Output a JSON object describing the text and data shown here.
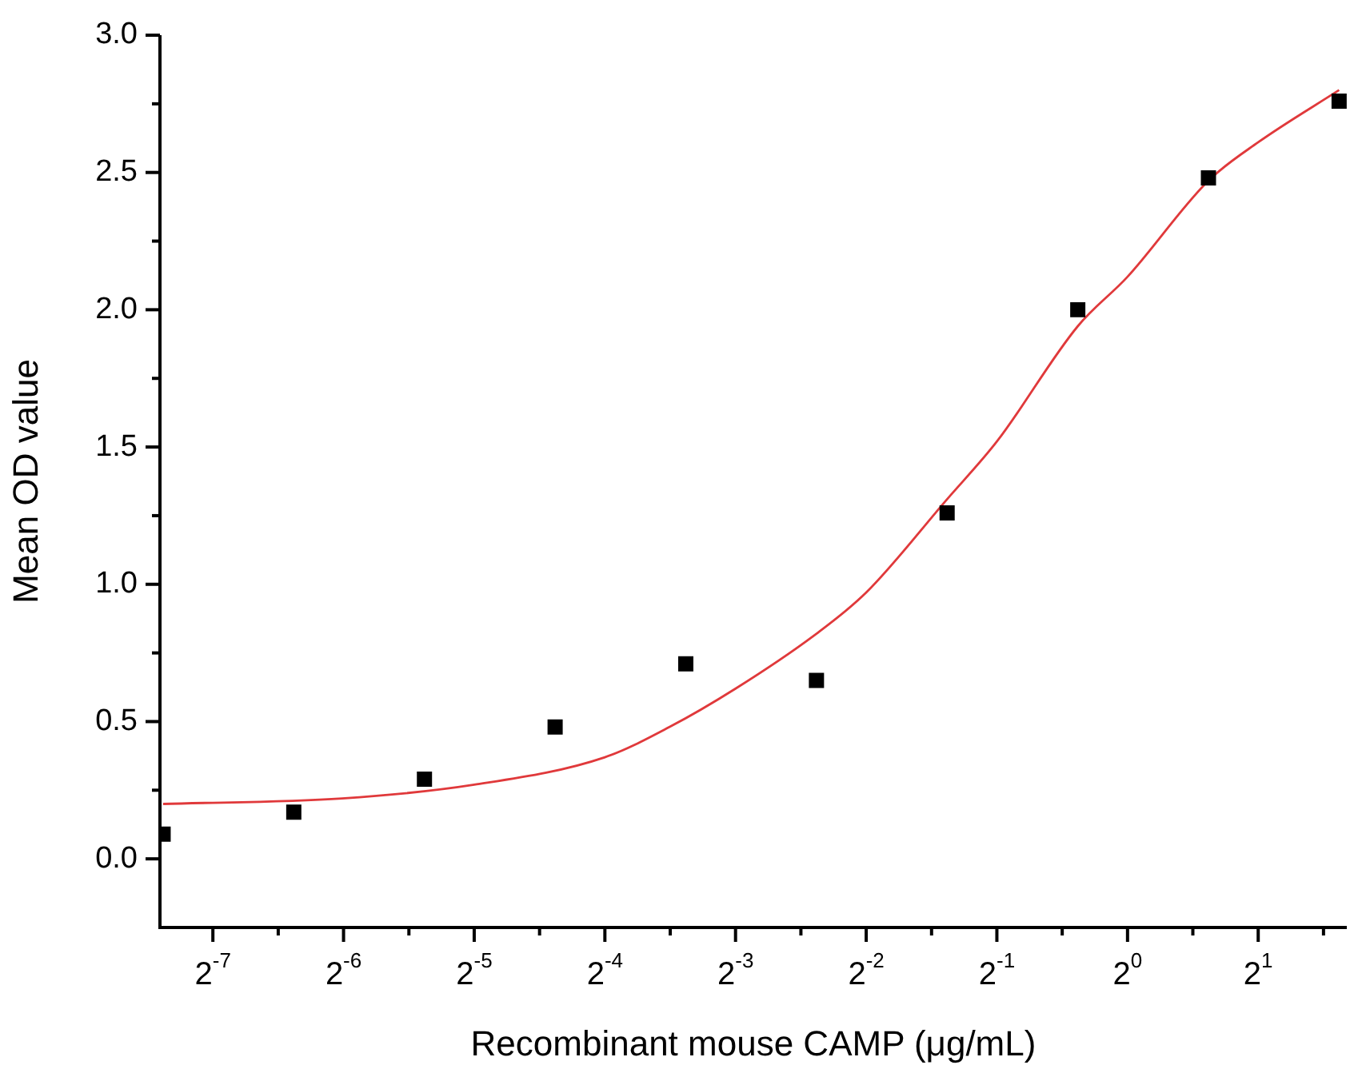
{
  "chart_data": {
    "type": "scatter",
    "xlabel": "Recombinant mouse CAMP (μg/mL)",
    "ylabel": "Mean OD value",
    "log": "x",
    "xlim": [
      0.0059,
      3.2
    ],
    "xticks": [
      {
        "value": 0.0078125,
        "label": "2$^{-7}$"
      },
      {
        "value": 0.01105,
        "label": null
      },
      {
        "value": 0.015625,
        "label": "2$^{-6}$"
      },
      {
        "value": 0.0221,
        "label": null
      },
      {
        "value": 0.03125,
        "label": "2$^{-5}$"
      },
      {
        "value": 0.0442,
        "label": null
      },
      {
        "value": 0.0625,
        "label": "2$^{-4}$"
      },
      {
        "value": 0.0884,
        "label": null
      },
      {
        "value": 0.125,
        "label": "2$^{-3}$"
      },
      {
        "value": 0.1768,
        "label": null
      },
      {
        "value": 0.25,
        "label": "2$^{-2}$"
      },
      {
        "value": 0.3536,
        "label": null
      },
      {
        "value": 0.5,
        "label": "2$^{-1}$"
      },
      {
        "value": 0.7071,
        "label": null
      },
      {
        "value": 1,
        "label": "2$^{0}$"
      },
      {
        "value": 1.414,
        "label": null
      },
      {
        "value": 2,
        "label": "2$^{1}$"
      },
      {
        "value": 2.828,
        "label": null
      }
    ],
    "ylim": [
      -0.25,
      3.0
    ],
    "yticks": [
      {
        "value": 0,
        "label": "0.0"
      },
      {
        "value": 0.25,
        "label": null
      },
      {
        "value": 0.5,
        "label": "0.5"
      },
      {
        "value": 0.75,
        "label": null
      },
      {
        "value": 1,
        "label": "1.0"
      },
      {
        "value": 1.25,
        "label": null
      },
      {
        "value": 1.5,
        "label": "1.5"
      },
      {
        "value": 1.75,
        "label": null
      },
      {
        "value": 2,
        "label": "2.0"
      },
      {
        "value": 2.25,
        "label": null
      },
      {
        "value": 2.5,
        "label": "2.5"
      },
      {
        "value": 2.75,
        "label": null
      },
      {
        "value": 3,
        "label": "3.0"
      }
    ],
    "grid": false,
    "legend": false,
    "marker": "square",
    "series": [
      {
        "color": "#000000",
        "x": [
          0.006,
          0.012,
          0.024,
          0.048,
          0.096,
          0.192,
          0.384,
          0.768,
          1.536,
          3.072
        ],
        "values": [
          0.09,
          0.17,
          0.29,
          0.48,
          0.71,
          0.65,
          1.26,
          2.0,
          2.48,
          2.76
        ]
      },
      {
        "type": "line",
        "marker": "none",
        "color": "#e0393b",
        "x": [
          0.006,
          0.0155,
          0.03125,
          0.0625,
          0.088,
          0.125,
          0.192,
          0.25,
          0.384,
          0.5,
          0.768,
          1,
          1.536,
          2,
          3.072
        ],
        "values": [
          0.2,
          0.22,
          0.27,
          0.37,
          0.48,
          0.62,
          0.82,
          0.97,
          1.31,
          1.52,
          1.94,
          2.12,
          2.47,
          2.61,
          2.8
        ]
      }
    ]
  }
}
